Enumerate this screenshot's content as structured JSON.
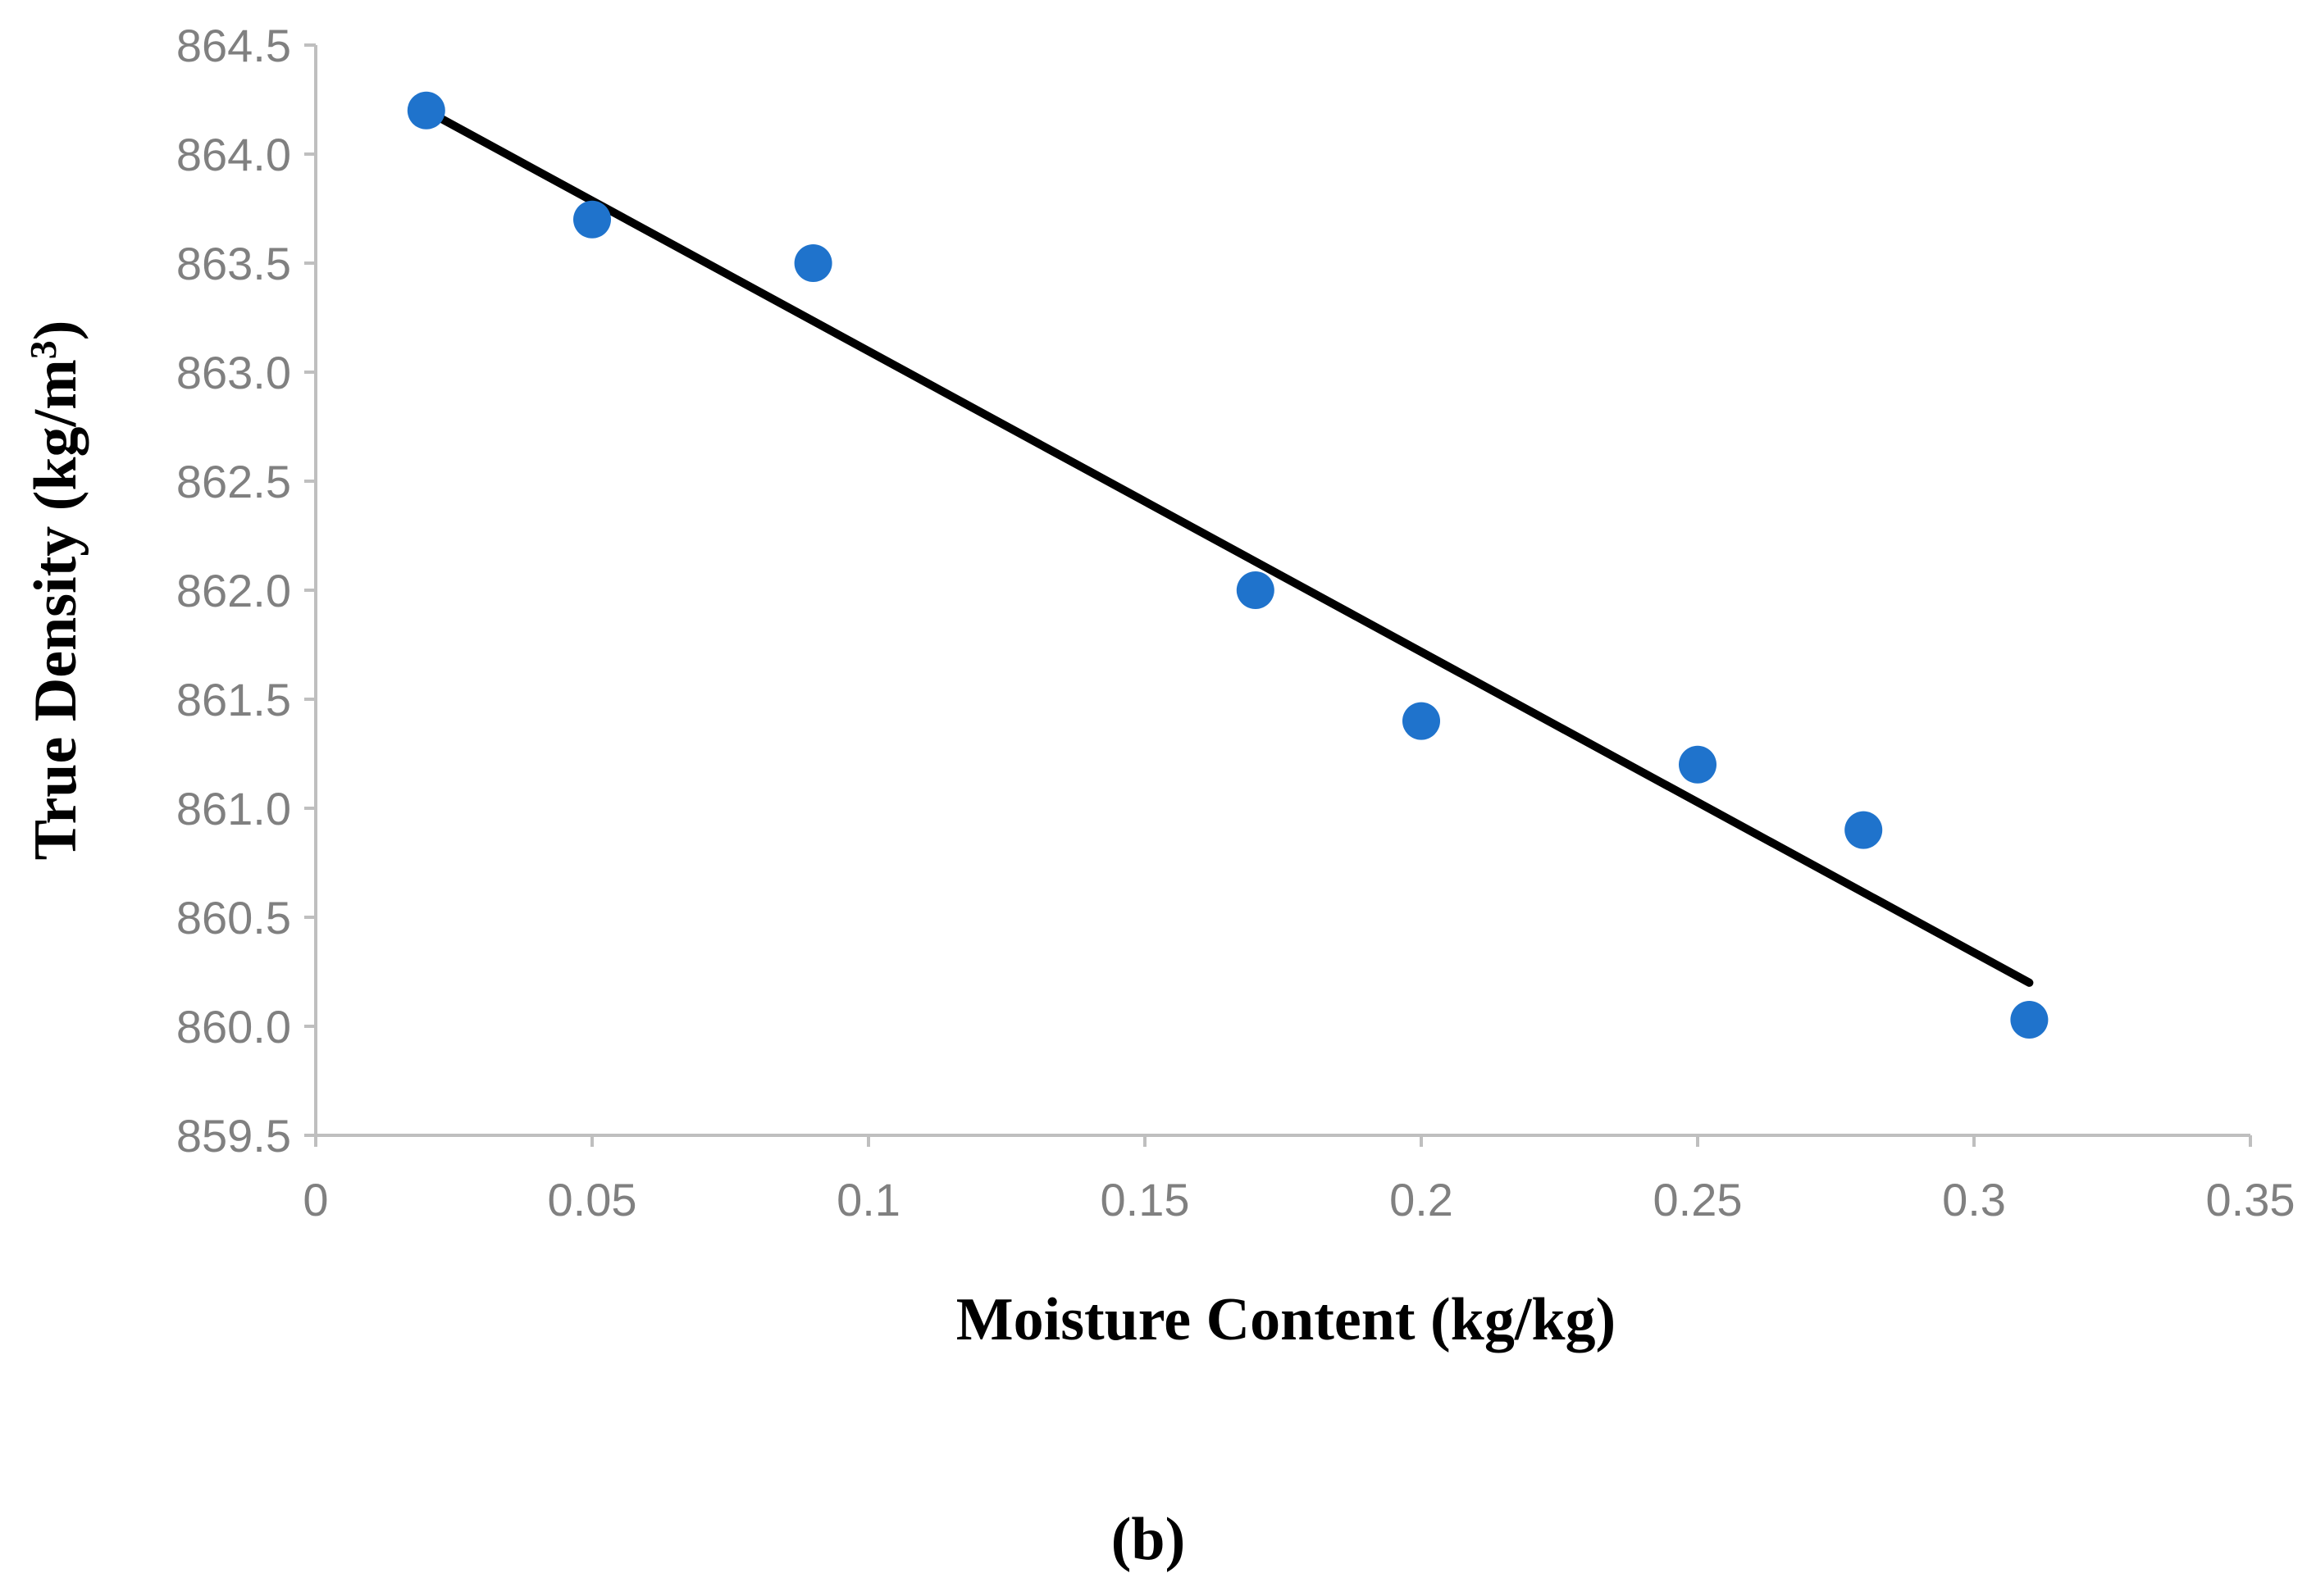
{
  "chart_data": {
    "type": "scatter",
    "title": "",
    "xlabel": "Moisture Content (kg/kg)",
    "ylabel_main": "True Density (kg/m",
    "ylabel_sup": "3",
    "ylabel_close": ")",
    "panel_label": "(b)",
    "xlim": [
      0,
      0.35
    ],
    "ylim": [
      859.5,
      864.5
    ],
    "x_ticks": [
      "0",
      "0.05",
      "0.1",
      "0.15",
      "0.2",
      "0.25",
      "0.3",
      "0.35"
    ],
    "y_ticks": [
      "859.5",
      "860.0",
      "860.5",
      "861.0",
      "861.5",
      "862.0",
      "862.5",
      "863.0",
      "863.5",
      "864.0",
      "864.5"
    ],
    "grid": false,
    "legend": "none",
    "series": [
      {
        "x": [
          0.02,
          0.05,
          0.09,
          0.17,
          0.2,
          0.25,
          0.28,
          0.31
        ],
        "y": [
          864.2,
          863.7,
          863.5,
          862.0,
          861.4,
          861.2,
          860.9,
          860.03
        ],
        "color": "#1F73CC"
      }
    ],
    "trendline": {
      "x": [
        0.02,
        0.31
      ],
      "y": [
        864.2,
        860.2
      ],
      "color": "#000000"
    }
  }
}
